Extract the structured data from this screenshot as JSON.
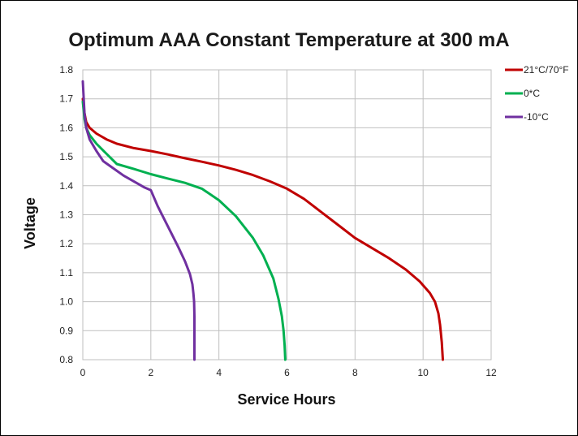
{
  "chart_data": {
    "type": "line",
    "title": "Optimum AAA Constant Temperature at 300 mA",
    "xlabel": "Service Hours",
    "ylabel": "Voltage",
    "xlim": [
      0,
      12
    ],
    "ylim": [
      0.8,
      1.8
    ],
    "xticks": [
      "0",
      "2",
      "4",
      "6",
      "8",
      "10",
      "12"
    ],
    "yticks": [
      "0.8",
      "0.9",
      "1.0",
      "1.1",
      "1.2",
      "1.3",
      "1.4",
      "1.5",
      "1.6",
      "1.7",
      "1.8"
    ],
    "grid": true,
    "legend_position": "right",
    "series": [
      {
        "name": "21°C/70°F",
        "color": "#c00000",
        "x": [
          0,
          0.05,
          0.1,
          0.2,
          0.4,
          0.7,
          1.0,
          1.5,
          2.0,
          2.5,
          3.0,
          3.5,
          4.0,
          4.5,
          5.0,
          5.5,
          6.0,
          6.5,
          7.0,
          7.5,
          8.0,
          8.5,
          9.0,
          9.5,
          9.9,
          10.2,
          10.35,
          10.45,
          10.5,
          10.55,
          10.58
        ],
        "y": [
          1.7,
          1.65,
          1.62,
          1.6,
          1.58,
          1.56,
          1.545,
          1.53,
          1.52,
          1.508,
          1.495,
          1.483,
          1.47,
          1.455,
          1.437,
          1.415,
          1.39,
          1.355,
          1.31,
          1.265,
          1.22,
          1.185,
          1.15,
          1.11,
          1.07,
          1.03,
          1.0,
          0.96,
          0.92,
          0.86,
          0.8
        ]
      },
      {
        "name": "0*C",
        "color": "#00b050",
        "x": [
          0,
          0.05,
          0.1,
          0.2,
          0.4,
          0.7,
          1.0,
          1.5,
          2.0,
          2.5,
          3.0,
          3.5,
          4.0,
          4.5,
          5.0,
          5.3,
          5.6,
          5.75,
          5.85,
          5.9,
          5.93,
          5.95
        ],
        "y": [
          1.69,
          1.63,
          1.6,
          1.575,
          1.545,
          1.51,
          1.475,
          1.458,
          1.44,
          1.425,
          1.41,
          1.39,
          1.35,
          1.295,
          1.22,
          1.16,
          1.08,
          1.01,
          0.95,
          0.9,
          0.85,
          0.8
        ]
      },
      {
        "name": "-10°C",
        "color": "#7030a0",
        "x": [
          0,
          0.05,
          0.1,
          0.2,
          0.4,
          0.6,
          0.9,
          1.2,
          1.5,
          1.8,
          2.0,
          2.2,
          2.5,
          2.8,
          3.0,
          3.15,
          3.22,
          3.25,
          3.27,
          3.28,
          3.28,
          3.28
        ],
        "y": [
          1.76,
          1.65,
          1.6,
          1.56,
          1.52,
          1.485,
          1.46,
          1.435,
          1.415,
          1.395,
          1.385,
          1.33,
          1.26,
          1.19,
          1.14,
          1.095,
          1.06,
          1.03,
          1.0,
          0.95,
          0.88,
          0.8
        ]
      }
    ]
  }
}
